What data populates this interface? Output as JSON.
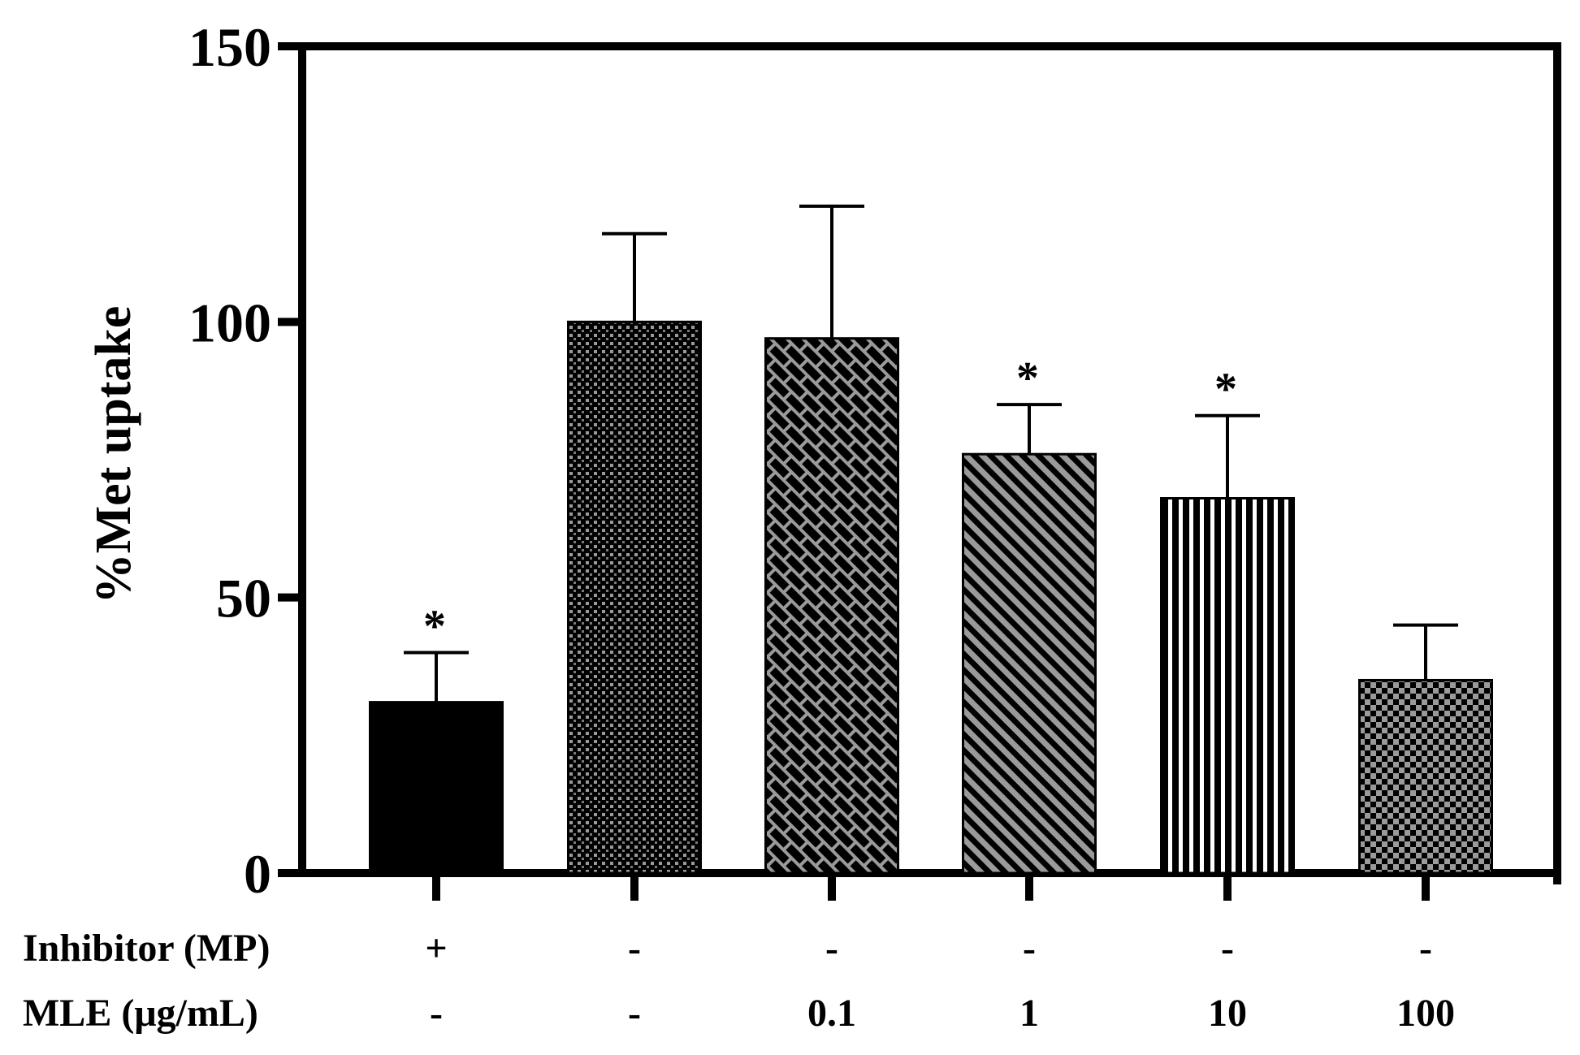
{
  "chart_data": {
    "type": "bar",
    "title": "",
    "xlabel": "",
    "ylabel": "%Met uptake",
    "ylim": [
      0,
      150
    ],
    "yticks": [
      0,
      50,
      100,
      150
    ],
    "grid": false,
    "bars": [
      {
        "value": 31,
        "error": 9,
        "significant": true,
        "pattern": "solid-black"
      },
      {
        "value": 100,
        "error": 16,
        "significant": false,
        "pattern": "dense-dots"
      },
      {
        "value": 97,
        "error": 24,
        "significant": false,
        "pattern": "brick-crosshatch"
      },
      {
        "value": 76,
        "error": 9,
        "significant": true,
        "pattern": "diagonal-stripes"
      },
      {
        "value": 68,
        "error": 15,
        "significant": true,
        "pattern": "vertical-stripes"
      },
      {
        "value": 35,
        "error": 10,
        "significant": false,
        "pattern": "checkerboard"
      }
    ],
    "significance_symbol": "*",
    "condition_rows": [
      {
        "label": "Inhibitor (MP)",
        "values": [
          "+",
          "-",
          "-",
          "-",
          "-",
          "-"
        ]
      },
      {
        "label": "MLE (μg/mL)",
        "values": [
          "-",
          "-",
          "0.1",
          "1",
          "10",
          "100"
        ]
      }
    ]
  }
}
